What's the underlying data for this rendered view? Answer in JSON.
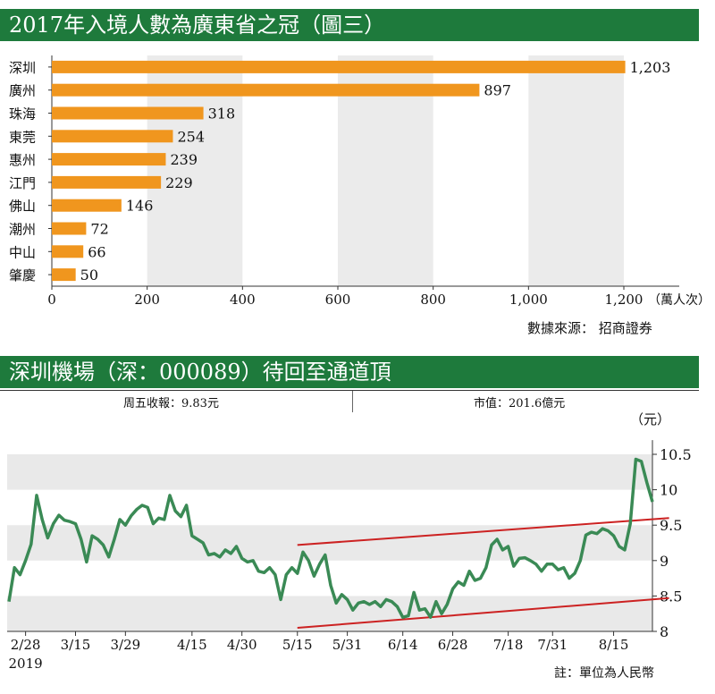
{
  "chart_data": [
    {
      "type": "bar",
      "orientation": "horizontal",
      "title": "2017年入境人數為廣東省之冠（圖三）",
      "categories": [
        "深圳",
        "廣州",
        "珠海",
        "東莞",
        "惠州",
        "江門",
        "佛山",
        "潮州",
        "中山",
        "肇慶"
      ],
      "values": [
        1203,
        897,
        318,
        254,
        239,
        229,
        146,
        72,
        66,
        50
      ],
      "value_labels": [
        "1,203",
        "897",
        "318",
        "254",
        "239",
        "229",
        "146",
        "72",
        "66",
        "50"
      ],
      "xlim": [
        0,
        1250
      ],
      "x_ticks": [
        0,
        200,
        400,
        600,
        800,
        1000,
        1200
      ],
      "x_tick_labels": [
        "0",
        "200",
        "400",
        "600",
        "800",
        "1,000",
        "1,200"
      ],
      "x_unit": "（萬人次）",
      "bar_color": "#f0961e",
      "source": "數據來源：  招商證券"
    },
    {
      "type": "line",
      "title": "深圳機場（深：000089）待回至通道頂",
      "info_left": "周五收報：9.83元",
      "info_right": "市值：201.6億元",
      "y_unit": "（元）",
      "ylim": [
        8,
        10.7
      ],
      "y_ticks": [
        8,
        8.5,
        9,
        9.5,
        10,
        10.5
      ],
      "y_tick_labels": [
        "8",
        "8.5",
        "9",
        "9.5",
        "10",
        "10.5"
      ],
      "x_ticks": [
        3,
        12,
        21,
        33,
        42,
        52,
        61,
        71,
        80,
        90,
        98,
        109
      ],
      "x_tick_labels": [
        "2/28",
        "3/15",
        "3/29",
        "4/15",
        "4/30",
        "5/15",
        "5/31",
        "6/14",
        "6/28",
        "7/18",
        "7/31",
        "8/15"
      ],
      "year_label": "2019",
      "series_color": "#3a8a55",
      "channel_color": "#cc2222",
      "series": [
        {
          "values": [
            8.42,
            8.9,
            8.8,
            9.0,
            9.23,
            9.92,
            9.58,
            9.32,
            9.52,
            9.64,
            9.57,
            9.55,
            9.52,
            9.3,
            8.98,
            9.35,
            9.3,
            9.22,
            9.05,
            9.3,
            9.58,
            9.5,
            9.63,
            9.72,
            9.78,
            9.75,
            9.52,
            9.6,
            9.58,
            9.92,
            9.7,
            9.62,
            9.78,
            9.35,
            9.3,
            9.25,
            9.08,
            9.1,
            9.05,
            9.15,
            9.1,
            9.2,
            9.03,
            8.98,
            9.0,
            8.85,
            8.83,
            8.9,
            8.8,
            8.45,
            8.8,
            8.9,
            8.82,
            9.12,
            9.0,
            8.78,
            8.95,
            9.08,
            8.65,
            8.4,
            8.52,
            8.45,
            8.3,
            8.4,
            8.42,
            8.38,
            8.42,
            8.35,
            8.45,
            8.42,
            8.35,
            8.2,
            8.22,
            8.55,
            8.3,
            8.32,
            8.2,
            8.42,
            8.25,
            8.38,
            8.6,
            8.7,
            8.65,
            8.85,
            8.72,
            8.75,
            8.9,
            9.22,
            9.3,
            9.15,
            9.2,
            8.92,
            9.03,
            9.04,
            9.0,
            8.95,
            8.85,
            8.95,
            8.95,
            8.87,
            8.9,
            8.75,
            8.82,
            9.0,
            9.36,
            9.4,
            9.38,
            9.45,
            9.42,
            9.35,
            9.2,
            9.15,
            9.52,
            10.43,
            10.4,
            10.1,
            9.83
          ]
        }
      ],
      "channel": [
        {
          "start": [
            52,
            9.22
          ],
          "end": [
            119,
            9.6
          ]
        },
        {
          "start": [
            52,
            8.05
          ],
          "end": [
            119,
            8.47
          ]
        }
      ],
      "note": "註：單位為人民幣"
    }
  ]
}
